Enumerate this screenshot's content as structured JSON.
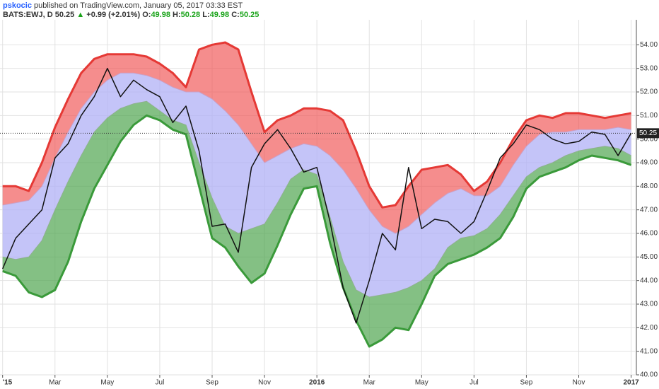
{
  "header": {
    "author": "pskocic",
    "published": "published on TradingView.com, January 05, 2017 03:33 EST",
    "symbol": "BATS:EWJ, D",
    "last": "50.25",
    "change": "+0.99 (+2.01%)",
    "ohlc": [
      {
        "label": "O:",
        "value": "49.98"
      },
      {
        "label": "H:",
        "value": "50.28"
      },
      {
        "label": "L:",
        "value": "49.98"
      },
      {
        "label": "C:",
        "value": "50.25"
      }
    ]
  },
  "chart_data": {
    "type": "line",
    "x": [
      0,
      0.5,
      1,
      1.5,
      2,
      2.5,
      3,
      3.5,
      4,
      4.5,
      5,
      5.5,
      6,
      6.5,
      7,
      7.5,
      8,
      8.5,
      9,
      9.5,
      10,
      10.5,
      11,
      11.5,
      12,
      12.5,
      13,
      13.5,
      14,
      14.5,
      15,
      15.5,
      16,
      16.5,
      17,
      17.5,
      18,
      18.5,
      19,
      19.5,
      20,
      20.5,
      21,
      21.5,
      22,
      22.5,
      23,
      23.5,
      24
    ],
    "xlim": [
      -0.1,
      24.2
    ],
    "xticks": [
      {
        "value": 0,
        "label": "'15"
      },
      {
        "value": 2,
        "label": "Mar"
      },
      {
        "value": 4,
        "label": "May"
      },
      {
        "value": 6,
        "label": "Jul"
      },
      {
        "value": 8,
        "label": "Sep"
      },
      {
        "value": 10,
        "label": "Nov"
      },
      {
        "value": 12,
        "label": "2016"
      },
      {
        "value": 14,
        "label": "Mar"
      },
      {
        "value": 16,
        "label": "May"
      },
      {
        "value": 18,
        "label": "Jul"
      },
      {
        "value": 20,
        "label": "Sep"
      },
      {
        "value": 22,
        "label": "Nov"
      },
      {
        "value": 24,
        "label": "2017"
      }
    ],
    "ylim": [
      40,
      55
    ],
    "yticks": [
      {
        "value": 40,
        "label": "40.00"
      },
      {
        "value": 41,
        "label": "41.00"
      },
      {
        "value": 42,
        "label": "42.00"
      },
      {
        "value": 43,
        "label": "43.00"
      },
      {
        "value": 44,
        "label": "44.00"
      },
      {
        "value": 45,
        "label": "45.00"
      },
      {
        "value": 46,
        "label": "46.00"
      },
      {
        "value": 47,
        "label": "47.00"
      },
      {
        "value": 48,
        "label": "48.00"
      },
      {
        "value": 49,
        "label": "49.00"
      },
      {
        "value": 50,
        "label": "50.00"
      },
      {
        "value": 51,
        "label": "51.00"
      },
      {
        "value": 52,
        "label": "52.00"
      },
      {
        "value": 53,
        "label": "53.00"
      },
      {
        "value": 54,
        "label": "54.00"
      }
    ],
    "grid": true,
    "last_value": 50.25,
    "series": [
      {
        "color": "#e53935",
        "fill": "rgba(240,80,80,0.65)",
        "width": 3,
        "values": [
          48.0,
          48.0,
          47.8,
          49.0,
          50.5,
          51.7,
          52.8,
          53.4,
          53.6,
          53.6,
          53.6,
          53.5,
          53.2,
          52.8,
          52.2,
          53.8,
          54.0,
          54.1,
          53.8,
          52.0,
          50.3,
          50.8,
          51.0,
          51.3,
          51.3,
          51.2,
          50.8,
          49.5,
          48.0,
          47.1,
          47.2,
          48.0,
          48.7,
          48.8,
          48.9,
          48.5,
          47.8,
          48.2,
          49.0,
          50.0,
          50.8,
          51.0,
          50.9,
          51.1,
          51.1,
          51.0,
          50.9,
          51.0,
          51.1
        ]
      },
      {
        "color": "#c9a0c8",
        "fill": "rgba(176,176,245,0.75)",
        "width": 1,
        "values": [
          47.2,
          47.3,
          47.4,
          48.0,
          49.2,
          50.3,
          51.3,
          52.0,
          52.5,
          52.8,
          52.8,
          52.7,
          52.5,
          52.2,
          52.0,
          52.0,
          51.7,
          51.2,
          50.6,
          49.8,
          49.0,
          49.3,
          49.6,
          49.8,
          49.7,
          49.3,
          48.7,
          47.9,
          47.0,
          46.3,
          46.0,
          46.3,
          46.8,
          47.3,
          47.7,
          47.9,
          47.6,
          47.6,
          48.0,
          48.9,
          49.7,
          50.2,
          50.3,
          50.3,
          50.4,
          50.4,
          50.4,
          50.5,
          50.4
        ]
      },
      {
        "color": "#8fb08f",
        "fill": "rgba(80,165,80,0.7)",
        "width": 1,
        "values": [
          45.0,
          44.9,
          45.0,
          45.7,
          47.0,
          48.2,
          49.3,
          50.3,
          50.9,
          51.3,
          51.5,
          51.6,
          51.2,
          50.8,
          50.6,
          49.0,
          47.5,
          46.3,
          46.0,
          46.2,
          46.4,
          47.3,
          48.3,
          48.7,
          48.5,
          46.7,
          44.8,
          43.6,
          43.3,
          43.4,
          43.5,
          43.7,
          44.0,
          44.5,
          45.4,
          45.8,
          45.9,
          46.2,
          46.8,
          47.6,
          48.4,
          48.8,
          49.0,
          49.3,
          49.5,
          49.6,
          49.7,
          49.6,
          49.3
        ]
      },
      {
        "color": "#3a9a3a",
        "width": 3,
        "values": [
          44.4,
          44.2,
          43.5,
          43.3,
          43.6,
          44.8,
          46.5,
          47.9,
          48.9,
          49.9,
          50.6,
          51.0,
          50.8,
          50.4,
          50.2,
          48.0,
          45.8,
          45.4,
          44.6,
          43.9,
          44.3,
          45.5,
          46.8,
          47.9,
          48.0,
          45.6,
          43.7,
          42.3,
          41.2,
          41.5,
          42.0,
          41.9,
          43.0,
          44.2,
          44.7,
          44.9,
          45.1,
          45.4,
          45.8,
          46.7,
          47.9,
          48.4,
          48.6,
          48.8,
          49.1,
          49.3,
          49.2,
          49.1,
          48.9
        ]
      },
      {
        "color": "#111111",
        "width": 1.5,
        "values": [
          44.5,
          45.8,
          46.4,
          47.0,
          49.2,
          49.8,
          51.0,
          51.8,
          53.0,
          51.8,
          52.5,
          52.1,
          51.8,
          50.7,
          51.4,
          49.5,
          46.3,
          46.4,
          45.2,
          48.8,
          49.8,
          50.4,
          49.6,
          48.6,
          48.8,
          46.5,
          43.7,
          42.2,
          44.0,
          46.0,
          45.3,
          48.8,
          46.2,
          46.6,
          46.5,
          46.0,
          46.5,
          47.8,
          49.2,
          49.8,
          50.6,
          50.4,
          50.0,
          49.8,
          49.9,
          50.3,
          50.2,
          49.3,
          50.25
        ]
      }
    ]
  }
}
